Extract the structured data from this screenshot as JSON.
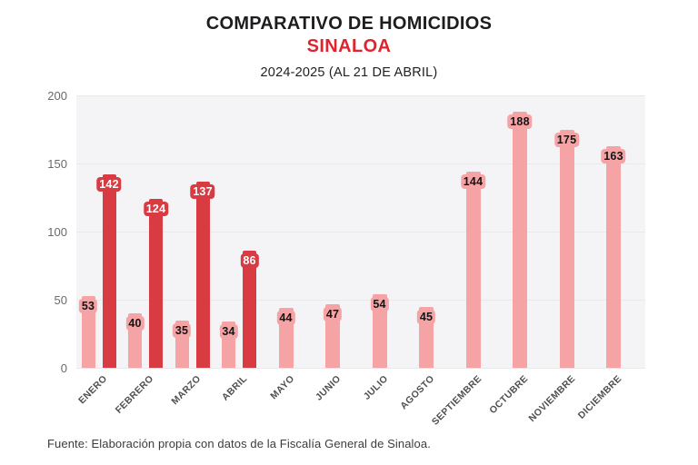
{
  "header": {
    "title": "COMPARATIVO DE HOMICIDIOS",
    "subtitle": "SINALOA",
    "period": "2024-2025 (AL 21 DE ABRIL)"
  },
  "footer": {
    "source": "Fuente: Elaboración propia con datos de la Fiscalía General de Sinaloa."
  },
  "colors": {
    "title_text": "#1d1d1f",
    "subtitle_red": "#e2232d",
    "bar_2024_pink": "#f5a3a5",
    "bar_2025_red": "#d93b43",
    "bar_label_on_pink": "#141414",
    "bar_label_on_red": "#ffffff",
    "plot_background": "#f4f4f6",
    "gridline": "#e9e9ed",
    "axis_text": "#6a6a6a"
  },
  "chart_data": {
    "type": "bar",
    "title": "COMPARATIVO DE HOMICIDIOS",
    "subtitle": "SINALOA",
    "period_note": "2024-2025 (AL 21 DE ABRIL)",
    "categories": [
      "ENERO",
      "FEBRERO",
      "MARZO",
      "ABRIL",
      "MAYO",
      "JUNIO",
      "JULIO",
      "AGOSTO",
      "SEPTIEMBRE",
      "OCTUBRE",
      "NOVIEMBRE",
      "DICIEMBRE"
    ],
    "series": [
      {
        "name": "2024",
        "color": "#f5a3a5",
        "label_color": "#141414",
        "values": [
          53,
          40,
          35,
          34,
          44,
          47,
          54,
          45,
          144,
          188,
          175,
          163
        ]
      },
      {
        "name": "2025",
        "color": "#d93b43",
        "label_color": "#ffffff",
        "values": [
          142,
          124,
          137,
          86,
          null,
          null,
          null,
          null,
          null,
          null,
          null,
          null
        ]
      }
    ],
    "ylim": [
      0,
      200
    ],
    "yticks": [
      0,
      50,
      100,
      150,
      200
    ],
    "grid": true,
    "legend": "none",
    "x_tick_rotation_deg": -45,
    "source": "Fuente: Elaboración propia con datos de la Fiscalía General de Sinaloa."
  }
}
